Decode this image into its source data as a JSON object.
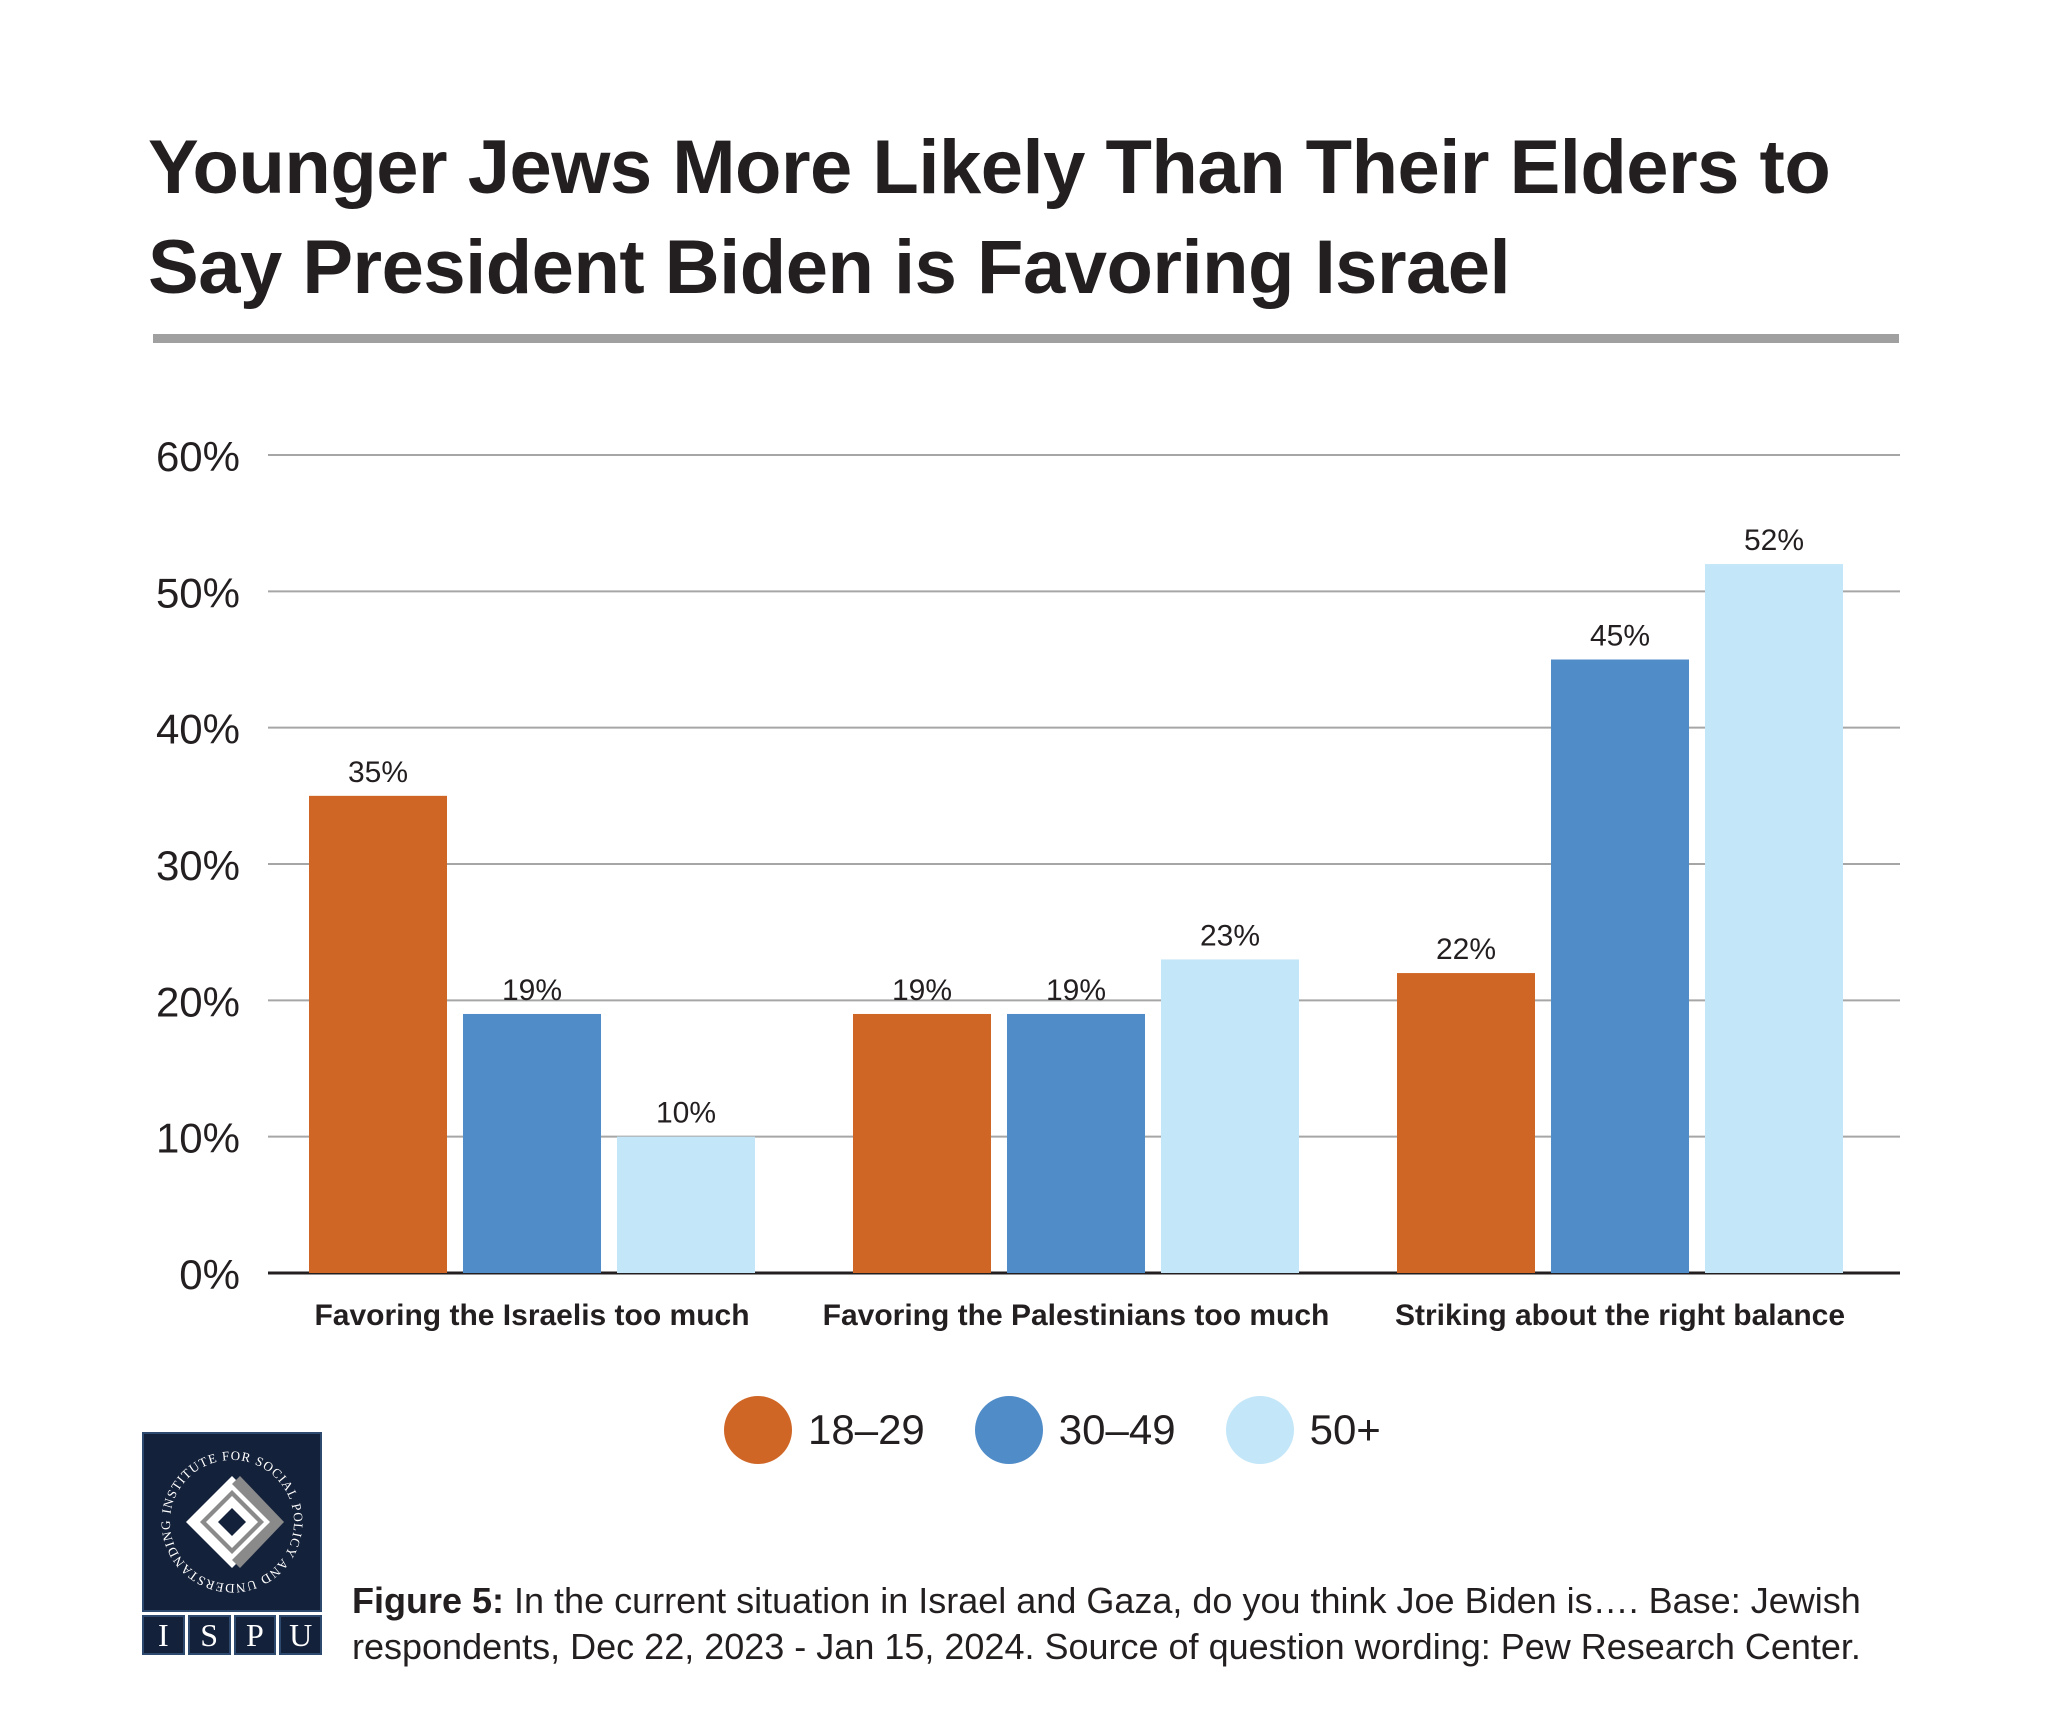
{
  "header": {
    "title_line1": "Younger Jews More Likely Than Their Elders to",
    "title_line2": "Say President Biden is Favoring Israel"
  },
  "chart_data": {
    "type": "bar",
    "title": "Younger Jews More Likely Than Their Elders to Say President Biden is Favoring Israel",
    "xlabel": "",
    "ylabel": "",
    "ylim": [
      0,
      60
    ],
    "yticks": [
      0,
      10,
      20,
      30,
      40,
      50,
      60
    ],
    "ytick_labels": [
      "0%",
      "10%",
      "20%",
      "30%",
      "40%",
      "50%",
      "60%"
    ],
    "grid": true,
    "legend_position": "bottom",
    "categories": [
      "Favoring the Israelis too much",
      "Favoring the Palestinians too much",
      "Striking about the right balance"
    ],
    "series": [
      {
        "name": "18–29",
        "color": "#cf6626",
        "values": [
          35,
          19,
          22
        ],
        "labels": [
          "35%",
          "19%",
          "22%"
        ]
      },
      {
        "name": "30–49",
        "color": "#508cc8",
        "values": [
          19,
          19,
          45
        ],
        "labels": [
          "19%",
          "19%",
          "45%"
        ]
      },
      {
        "name": "50+",
        "color": "#c3e6f8",
        "values": [
          10,
          23,
          52
        ],
        "labels": [
          "10%",
          "23%",
          "52%"
        ]
      }
    ]
  },
  "legend": {
    "items": [
      {
        "label": "18–29",
        "color": "#cf6626"
      },
      {
        "label": "30–49",
        "color": "#508cc8"
      },
      {
        "label": "50+",
        "color": "#c3e6f8"
      }
    ]
  },
  "logo": {
    "ring_text": "INSTITUTE FOR SOCIAL POLICY AND UNDERSTANDING",
    "letters": [
      "I",
      "S",
      "P",
      "U"
    ]
  },
  "caption": {
    "figure_label": "Figure 5:",
    "text": " In the current situation in Israel and Gaza, do you think Joe Biden is…. Base: Jewish respondents, Dec 22, 2023 - Jan 15, 2024. Source of question wording: Pew Research Center."
  }
}
